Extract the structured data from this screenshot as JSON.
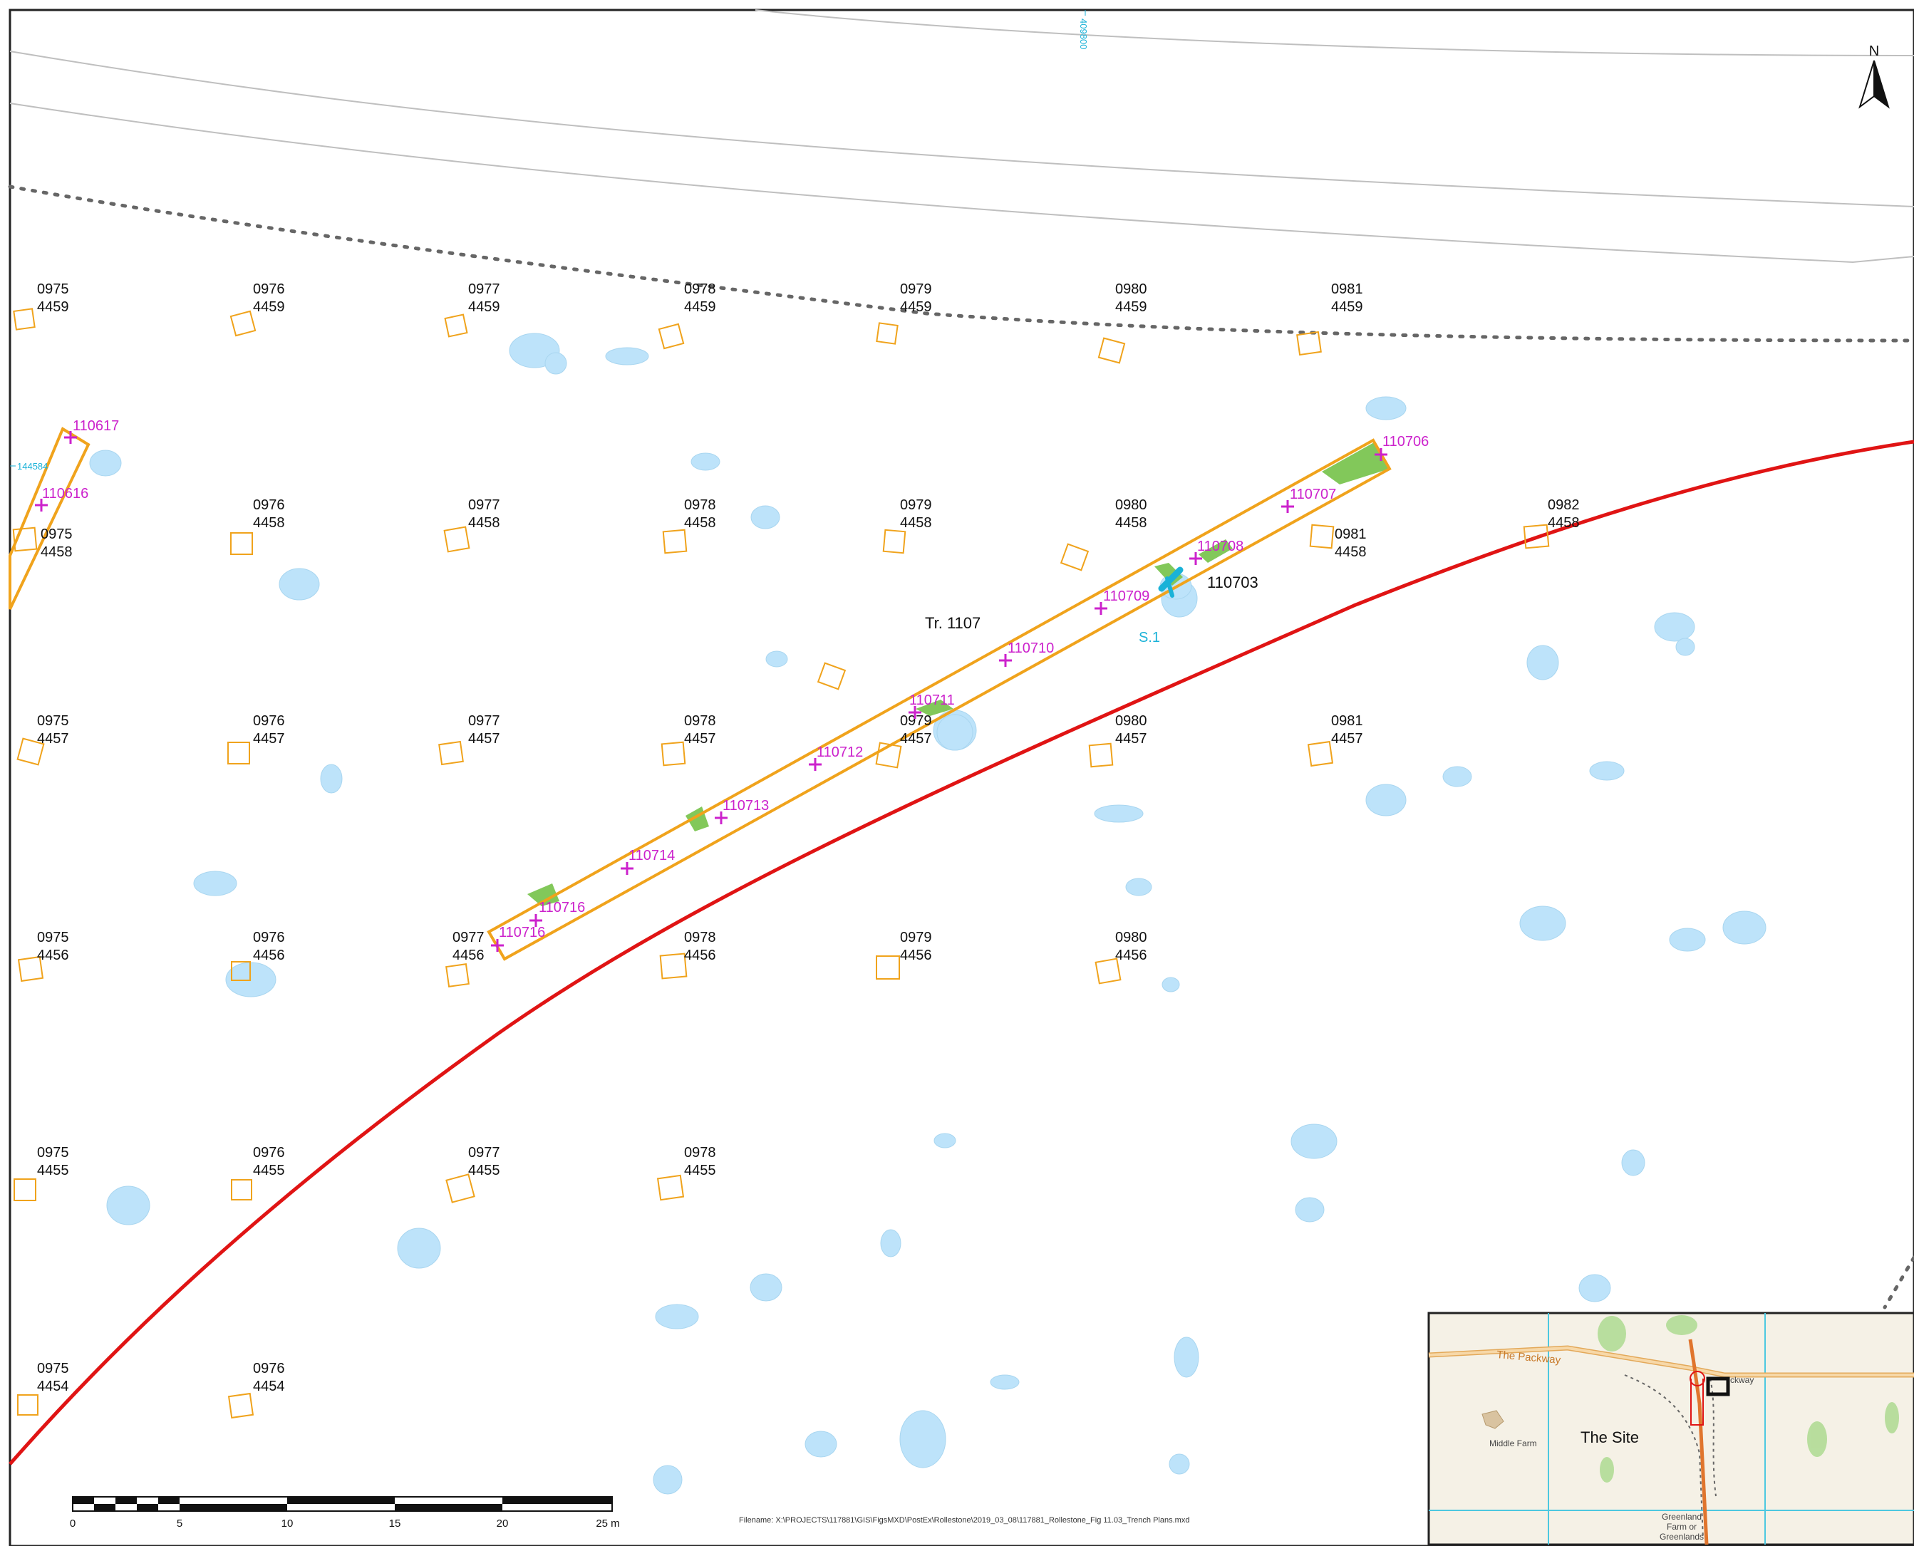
{
  "map": {
    "grid_labels": [
      {
        "e": "0975",
        "n": "4459"
      },
      {
        "e": "0976",
        "n": "4459"
      },
      {
        "e": "0977",
        "n": "4459"
      },
      {
        "e": "0978",
        "n": "4459"
      },
      {
        "e": "0979",
        "n": "4459"
      },
      {
        "e": "0980",
        "n": "4459"
      },
      {
        "e": "0981",
        "n": "4459"
      },
      {
        "e": "0975",
        "n": "4458"
      },
      {
        "e": "0976",
        "n": "4458"
      },
      {
        "e": "0977",
        "n": "4458"
      },
      {
        "e": "0978",
        "n": "4458"
      },
      {
        "e": "0979",
        "n": "4458"
      },
      {
        "e": "0980",
        "n": "4458"
      },
      {
        "e": "0981",
        "n": "4458"
      },
      {
        "e": "0982",
        "n": "4458"
      },
      {
        "e": "0975",
        "n": "4457"
      },
      {
        "e": "0976",
        "n": "4457"
      },
      {
        "e": "0977",
        "n": "4457"
      },
      {
        "e": "0978",
        "n": "4457"
      },
      {
        "e": "0979",
        "n": "4457"
      },
      {
        "e": "0980",
        "n": "4457"
      },
      {
        "e": "0981",
        "n": "4457"
      },
      {
        "e": "0975",
        "n": "4456"
      },
      {
        "e": "0976",
        "n": "4456"
      },
      {
        "e": "0977",
        "n": "4456"
      },
      {
        "e": "0978",
        "n": "4456"
      },
      {
        "e": "0979",
        "n": "4456"
      },
      {
        "e": "0980",
        "n": "4456"
      },
      {
        "e": "0975",
        "n": "4455"
      },
      {
        "e": "0976",
        "n": "4455"
      },
      {
        "e": "0977",
        "n": "4455"
      },
      {
        "e": "0978",
        "n": "4455"
      },
      {
        "e": "0975",
        "n": "4454"
      },
      {
        "e": "0976",
        "n": "4454"
      }
    ],
    "points": [
      "110617",
      "110616",
      "110706",
      "110707",
      "110708",
      "110709",
      "110710",
      "110711",
      "110712",
      "110713",
      "110714",
      "110716",
      "110716"
    ],
    "trench_label": "Tr. 1107",
    "feature_label": "110703",
    "section_label": "S.1",
    "coord_top": "409800",
    "coord_left": "144584",
    "north_label": "N",
    "scale_ticks": [
      "0",
      "5",
      "10",
      "15",
      "20",
      "25 m"
    ],
    "filename": "Filename: X:\\PROJECTS\\117881\\GIS\\FigsMXD\\PostEx\\Rollestone\\2019_03_08\\117881_Rollestone_Fig 11.03_Trench Plans.mxd"
  },
  "inset": {
    "site_label": "The Site",
    "farm_label": "Middle Farm",
    "road_label": "The Packway",
    "road_label_2": "ckway",
    "farm2_label": [
      "Greenland",
      "Farm or",
      "Greenlands"
    ]
  },
  "colors": {
    "trench": "#f0a31c",
    "grid_square": "#f0a31c",
    "points": "#cc22cc",
    "boundary": "#e01414",
    "water": "#bde3fa",
    "vegetation": "#82c85a",
    "section": "#1ab2d8",
    "contour": "#bfbfbf",
    "dotted": "#666666"
  }
}
